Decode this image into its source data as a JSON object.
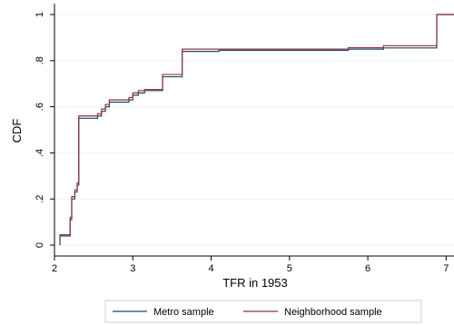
{
  "chart_data": {
    "type": "line",
    "xlabel": "TFR in 1953",
    "ylabel": "CDF",
    "xlim": [
      2,
      7.1
    ],
    "ylim": [
      0,
      1
    ],
    "x_ticks": [
      2,
      3,
      4,
      5,
      6,
      7
    ],
    "x_tick_labels": [
      "2",
      "3",
      "4",
      "5",
      "6",
      "7"
    ],
    "y_ticks": [
      0,
      0.2,
      0.4,
      0.6,
      0.8,
      1
    ],
    "y_tick_labels": [
      "0",
      ".2",
      ".4",
      ".6",
      ".8",
      "1"
    ],
    "grid": "horizontal",
    "legend_position": "bottom",
    "step": true,
    "series": [
      {
        "name": "Metro sample",
        "color": "#1a476f",
        "points": [
          [
            2.07,
            0.0
          ],
          [
            2.07,
            0.04
          ],
          [
            2.2,
            0.04
          ],
          [
            2.2,
            0.11
          ],
          [
            2.22,
            0.11
          ],
          [
            2.22,
            0.2
          ],
          [
            2.26,
            0.2
          ],
          [
            2.26,
            0.23
          ],
          [
            2.29,
            0.23
          ],
          [
            2.29,
            0.26
          ],
          [
            2.31,
            0.26
          ],
          [
            2.31,
            0.55
          ],
          [
            2.55,
            0.55
          ],
          [
            2.55,
            0.56
          ],
          [
            2.6,
            0.56
          ],
          [
            2.6,
            0.58
          ],
          [
            2.65,
            0.58
          ],
          [
            2.65,
            0.6
          ],
          [
            2.7,
            0.6
          ],
          [
            2.7,
            0.62
          ],
          [
            2.95,
            0.62
          ],
          [
            2.95,
            0.63
          ],
          [
            3.0,
            0.63
          ],
          [
            3.0,
            0.65
          ],
          [
            3.07,
            0.65
          ],
          [
            3.07,
            0.66
          ],
          [
            3.15,
            0.66
          ],
          [
            3.15,
            0.67
          ],
          [
            3.38,
            0.67
          ],
          [
            3.38,
            0.73
          ],
          [
            3.63,
            0.73
          ],
          [
            3.63,
            0.84
          ],
          [
            4.1,
            0.84
          ],
          [
            4.1,
            0.845
          ],
          [
            5.75,
            0.845
          ],
          [
            5.75,
            0.85
          ],
          [
            6.2,
            0.85
          ],
          [
            6.2,
            0.855
          ],
          [
            6.88,
            0.855
          ],
          [
            6.88,
            1.0
          ],
          [
            7.1,
            1.0
          ]
        ]
      },
      {
        "name": "Neighborhood sample",
        "color": "#90353b",
        "points": [
          [
            2.07,
            0.0
          ],
          [
            2.07,
            0.045
          ],
          [
            2.2,
            0.045
          ],
          [
            2.2,
            0.12
          ],
          [
            2.22,
            0.12
          ],
          [
            2.22,
            0.21
          ],
          [
            2.26,
            0.21
          ],
          [
            2.26,
            0.24
          ],
          [
            2.29,
            0.24
          ],
          [
            2.29,
            0.27
          ],
          [
            2.31,
            0.27
          ],
          [
            2.31,
            0.56
          ],
          [
            2.55,
            0.56
          ],
          [
            2.55,
            0.57
          ],
          [
            2.6,
            0.57
          ],
          [
            2.6,
            0.59
          ],
          [
            2.65,
            0.59
          ],
          [
            2.65,
            0.61
          ],
          [
            2.7,
            0.61
          ],
          [
            2.7,
            0.63
          ],
          [
            2.95,
            0.63
          ],
          [
            2.95,
            0.64
          ],
          [
            3.0,
            0.64
          ],
          [
            3.0,
            0.66
          ],
          [
            3.07,
            0.66
          ],
          [
            3.07,
            0.67
          ],
          [
            3.15,
            0.67
          ],
          [
            3.15,
            0.675
          ],
          [
            3.38,
            0.675
          ],
          [
            3.38,
            0.74
          ],
          [
            3.63,
            0.74
          ],
          [
            3.63,
            0.85
          ],
          [
            4.1,
            0.85
          ],
          [
            4.1,
            0.85
          ],
          [
            5.75,
            0.85
          ],
          [
            5.75,
            0.856
          ],
          [
            6.2,
            0.856
          ],
          [
            6.2,
            0.865
          ],
          [
            6.88,
            0.865
          ],
          [
            6.88,
            1.0
          ],
          [
            7.1,
            1.0
          ]
        ]
      }
    ]
  }
}
